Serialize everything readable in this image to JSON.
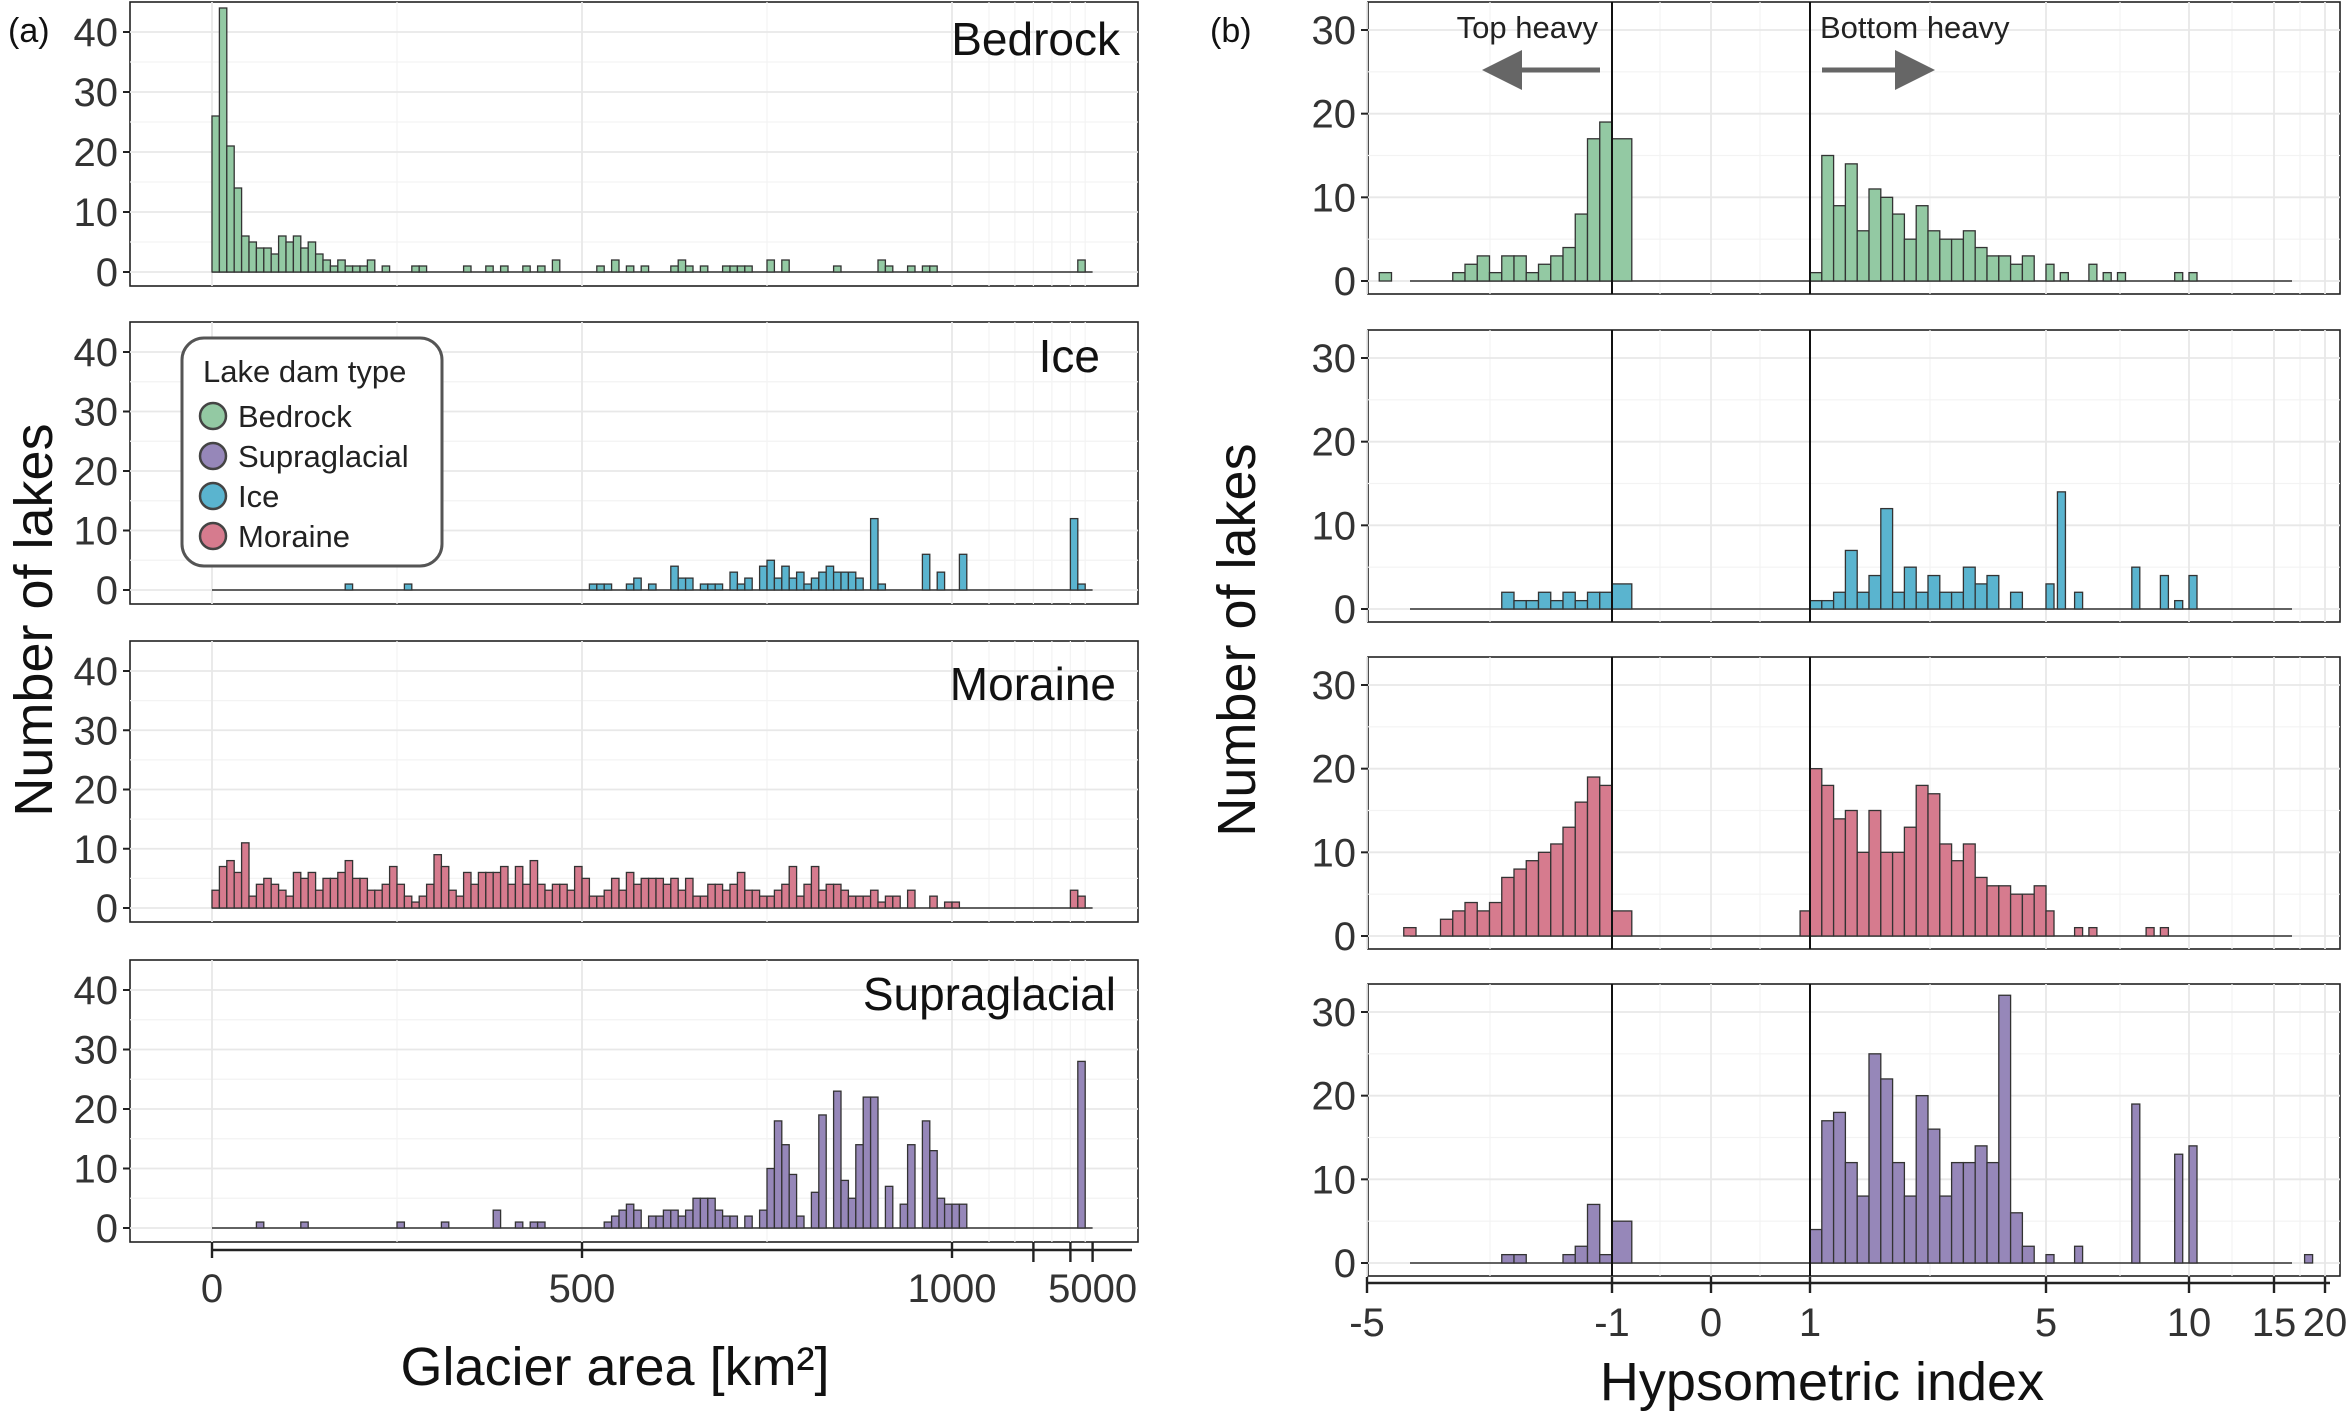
{
  "colors": {
    "Bedrock": "#93c9a3",
    "Ice": "#5ab4cf",
    "Moraine": "#d67b8e",
    "Supraglacial": "#9687b9",
    "arrow": "#666666"
  },
  "panel_tags": {
    "a": "(a)",
    "b": "(b)"
  },
  "legend": {
    "title": "Lake dam type",
    "items": [
      "Bedrock",
      "Supraglacial",
      "Ice",
      "Moraine"
    ]
  },
  "annotations": {
    "top_heavy": "Top heavy",
    "bottom_heavy": "Bottom heavy"
  },
  "chart_data": [
    {
      "type": "bar",
      "panel": "(a)",
      "xlabel": "Glacier area [km²]",
      "ylabel": "Number of lakes",
      "xlim": [
        0,
        1200
      ],
      "ylim": [
        0,
        45
      ],
      "x_ticks": [
        0,
        500,
        1000
      ],
      "x_tick_labels": [
        "0",
        "500",
        "1000"
      ],
      "x_extra_ticks": [
        1110,
        1160,
        1190
      ],
      "x_extra_tick_labels": [
        "5000"
      ],
      "y_ticks": [
        0,
        10,
        20,
        30,
        40
      ],
      "bin_width": 10,
      "facets": [
        {
          "label": "Bedrock",
          "series": "Bedrock",
          "x": [
            0,
            10,
            20,
            30,
            40,
            50,
            60,
            70,
            80,
            90,
            100,
            110,
            120,
            130,
            140,
            150,
            160,
            170,
            180,
            190,
            200,
            210,
            220,
            230,
            240,
            250,
            260,
            270,
            280,
            290,
            340,
            370,
            390,
            420,
            440,
            460,
            520,
            540,
            560,
            580,
            620,
            630,
            640,
            660,
            680,
            690,
            700,
            710,
            720,
            740,
            750,
            770,
            840,
            900,
            910,
            940,
            960,
            970,
            1170
          ],
          "values": [
            26,
            44,
            21,
            14,
            6,
            5,
            4,
            4,
            3,
            6,
            5,
            6,
            4,
            5,
            3,
            2,
            1,
            2,
            1,
            1,
            1,
            2,
            0,
            1,
            0,
            0,
            0,
            1,
            1,
            0,
            1,
            1,
            1,
            1,
            1,
            2,
            1,
            2,
            1,
            1,
            1,
            2,
            1,
            1,
            0,
            1,
            1,
            1,
            1,
            0,
            2,
            2,
            1,
            2,
            1,
            1,
            1,
            1,
            2
          ]
        },
        {
          "label": "Ice",
          "series": "Ice",
          "x": [
            180,
            260,
            510,
            520,
            530,
            560,
            570,
            590,
            620,
            630,
            640,
            660,
            670,
            680,
            700,
            710,
            720,
            740,
            750,
            760,
            770,
            780,
            790,
            800,
            810,
            820,
            830,
            840,
            850,
            860,
            870,
            890,
            900,
            910,
            960,
            980,
            1010,
            1160,
            1170
          ],
          "values": [
            1,
            1,
            1,
            1,
            1,
            1,
            2,
            1,
            4,
            2,
            2,
            1,
            1,
            1,
            3,
            1,
            2,
            4,
            5,
            2,
            4,
            2,
            3,
            1,
            2,
            3,
            4,
            3,
            3,
            3,
            2,
            12,
            1,
            0,
            6,
            3,
            6,
            12,
            1
          ]
        },
        {
          "label": "Moraine",
          "series": "Moraine",
          "x": [
            0,
            10,
            20,
            30,
            40,
            50,
            60,
            70,
            80,
            90,
            100,
            110,
            120,
            130,
            140,
            150,
            160,
            170,
            180,
            190,
            200,
            210,
            220,
            230,
            240,
            250,
            260,
            270,
            280,
            290,
            300,
            310,
            320,
            330,
            340,
            350,
            360,
            370,
            380,
            390,
            400,
            410,
            420,
            430,
            440,
            450,
            460,
            470,
            480,
            490,
            500,
            510,
            520,
            530,
            540,
            550,
            560,
            570,
            580,
            590,
            600,
            610,
            620,
            630,
            640,
            650,
            660,
            670,
            680,
            690,
            700,
            710,
            720,
            730,
            740,
            750,
            760,
            770,
            780,
            790,
            800,
            810,
            820,
            830,
            840,
            850,
            860,
            870,
            880,
            890,
            900,
            910,
            920,
            940,
            970,
            990,
            1000,
            1160,
            1170
          ],
          "values": [
            3,
            7,
            8,
            6,
            11,
            2,
            4,
            5,
            4,
            3,
            2,
            6,
            5,
            6,
            3,
            5,
            5,
            6,
            8,
            5,
            5,
            3,
            3,
            4,
            7,
            4,
            2,
            1,
            2,
            4,
            9,
            7,
            3,
            2,
            6,
            4,
            6,
            6,
            6,
            7,
            4,
            7,
            4,
            8,
            4,
            3,
            4,
            4,
            3,
            7,
            5,
            2,
            2,
            3,
            5,
            3,
            6,
            4,
            5,
            5,
            5,
            4,
            5,
            3,
            5,
            2,
            2,
            4,
            4,
            3,
            4,
            6,
            3,
            3,
            2,
            2,
            3,
            4,
            7,
            2,
            4,
            7,
            3,
            4,
            4,
            3,
            2,
            2,
            2,
            3,
            1,
            2,
            2,
            3,
            2,
            1,
            1,
            3,
            2
          ]
        },
        {
          "label": "Supraglacial",
          "series": "Supraglacial",
          "x": [
            60,
            120,
            250,
            310,
            380,
            410,
            430,
            440,
            530,
            540,
            550,
            560,
            570,
            590,
            600,
            610,
            620,
            630,
            640,
            650,
            660,
            670,
            680,
            690,
            700,
            720,
            740,
            750,
            760,
            770,
            780,
            790,
            810,
            820,
            840,
            850,
            860,
            870,
            880,
            890,
            910,
            930,
            940,
            960,
            970,
            980,
            990,
            1000,
            1010,
            1170
          ],
          "values": [
            1,
            1,
            1,
            1,
            3,
            1,
            1,
            1,
            1,
            2,
            3,
            4,
            3,
            2,
            2,
            3,
            3,
            2,
            3,
            5,
            5,
            5,
            3,
            2,
            2,
            2,
            3,
            10,
            18,
            14,
            9,
            2,
            6,
            19,
            23,
            8,
            5,
            14,
            22,
            22,
            7,
            4,
            14,
            18,
            13,
            5,
            4,
            4,
            4,
            28
          ]
        }
      ]
    },
    {
      "type": "bar",
      "panel": "(b)",
      "xlabel": "Hypsometric index",
      "ylabel": "Number of lakes",
      "ylim": [
        0,
        33
      ],
      "x_ticks": [
        "-5",
        "-1",
        "0",
        "1",
        "5",
        "10",
        "15",
        "20"
      ],
      "y_ticks": [
        0,
        10,
        20,
        30
      ],
      "facets": [
        {
          "series": "Bedrock",
          "x": [
            -4.8,
            -3.6,
            -3.4,
            -3.2,
            -3.0,
            -2.8,
            -2.6,
            -2.4,
            -2.2,
            -2.0,
            -1.8,
            -1.6,
            -1.4,
            -1.2,
            -1.0,
            1.0,
            1.2,
            1.4,
            1.6,
            1.8,
            2.0,
            2.2,
            2.4,
            2.6,
            2.8,
            3.0,
            3.2,
            3.4,
            3.6,
            3.8,
            4.0,
            4.2,
            4.4,
            4.6,
            5.0,
            5.5,
            6.5,
            7.0,
            7.5,
            9.5,
            10.0
          ],
          "values": [
            1,
            1,
            2,
            3,
            1,
            3,
            3,
            1,
            2,
            3,
            4,
            8,
            17,
            19,
            17,
            1,
            15,
            9,
            14,
            6,
            11,
            10,
            8,
            5,
            9,
            6,
            5,
            5,
            6,
            4,
            3,
            3,
            2,
            3,
            2,
            1,
            2,
            1,
            1,
            1,
            1
          ]
        },
        {
          "series": "Ice",
          "x": [
            -2.8,
            -2.6,
            -2.4,
            -2.2,
            -2.0,
            -1.8,
            -1.6,
            -1.4,
            -1.2,
            -1.0,
            1.0,
            1.2,
            1.4,
            1.6,
            1.8,
            2.0,
            2.2,
            2.4,
            2.6,
            2.8,
            3.0,
            3.2,
            3.4,
            3.6,
            3.8,
            4.0,
            4.4,
            5.0,
            5.4,
            6.0,
            8.0,
            9.0,
            9.5,
            10.0
          ],
          "values": [
            2,
            1,
            1,
            2,
            1,
            2,
            1,
            2,
            2,
            3,
            1,
            1,
            2,
            7,
            2,
            4,
            12,
            2,
            5,
            2,
            4,
            2,
            2,
            5,
            3,
            4,
            2,
            3,
            14,
            2,
            5,
            4,
            1,
            4
          ]
        },
        {
          "series": "Moraine",
          "x": [
            -4.8,
            -4.4,
            -3.8,
            -3.6,
            -3.4,
            -3.2,
            -3.0,
            -2.8,
            -2.6,
            -2.4,
            -2.2,
            -2.0,
            -1.8,
            -1.6,
            -1.4,
            -1.2,
            -1.0,
            0.9,
            1.0,
            1.2,
            1.4,
            1.6,
            1.8,
            2.0,
            2.2,
            2.4,
            2.6,
            2.8,
            3.0,
            3.2,
            3.4,
            3.6,
            3.8,
            4.0,
            4.2,
            4.4,
            4.6,
            4.8,
            5.0,
            6.0,
            6.5,
            8.5,
            9.0
          ],
          "values": [
            0,
            1,
            2,
            3,
            4,
            3,
            4,
            7,
            8,
            9,
            10,
            11,
            13,
            16,
            19,
            18,
            3,
            3,
            20,
            18,
            14,
            15,
            10,
            15,
            10,
            10,
            13,
            18,
            17,
            11,
            9,
            11,
            7,
            6,
            6,
            5,
            5,
            6,
            3,
            1,
            1,
            1,
            1
          ]
        },
        {
          "series": "Supraglacial",
          "x": [
            -2.8,
            -2.6,
            -1.8,
            -1.6,
            -1.4,
            -1.2,
            -1.0,
            1.0,
            1.2,
            1.4,
            1.6,
            1.8,
            2.0,
            2.2,
            2.4,
            2.6,
            2.8,
            3.0,
            3.2,
            3.4,
            3.6,
            3.8,
            4.0,
            4.2,
            4.4,
            4.6,
            4.8,
            5.0,
            6.0,
            8.0,
            9.5,
            10.0,
            18.0
          ],
          "values": [
            1,
            1,
            1,
            2,
            7,
            1,
            5,
            4,
            17,
            18,
            12,
            8,
            25,
            22,
            12,
            8,
            20,
            16,
            8,
            12,
            12,
            14,
            12,
            32,
            6,
            2,
            0,
            1,
            2,
            19,
            13,
            14,
            1
          ]
        }
      ]
    }
  ]
}
